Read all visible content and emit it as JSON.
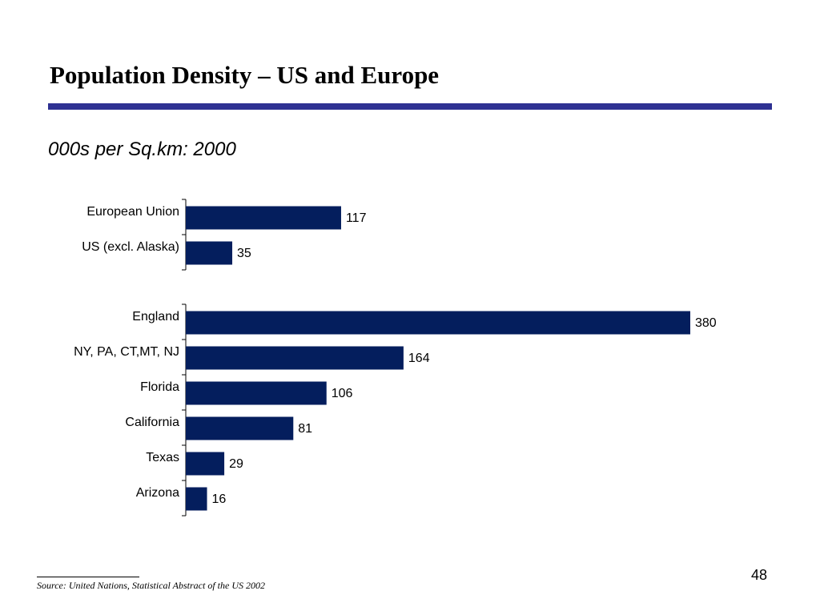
{
  "slide": {
    "title": "Population Density – US and Europe",
    "subtitle": "000s per Sq.km: 2000",
    "source": "Source:  United Nations, Statistical Abstract of the US 2002",
    "page_number": "48",
    "accent_color": "#2e3192"
  },
  "chart_data": {
    "type": "bar",
    "orientation": "horizontal",
    "bar_color": "#041e5d",
    "data_labels": true,
    "groups": [
      {
        "categories": [
          "European Union",
          "US (excl. Alaska)"
        ],
        "values": [
          117,
          35
        ]
      },
      {
        "categories": [
          "England",
          "NY, PA, CT,MT, NJ",
          "Florida",
          "California",
          "Texas",
          "Arizona"
        ],
        "values": [
          380,
          164,
          106,
          81,
          29,
          16
        ]
      }
    ]
  }
}
